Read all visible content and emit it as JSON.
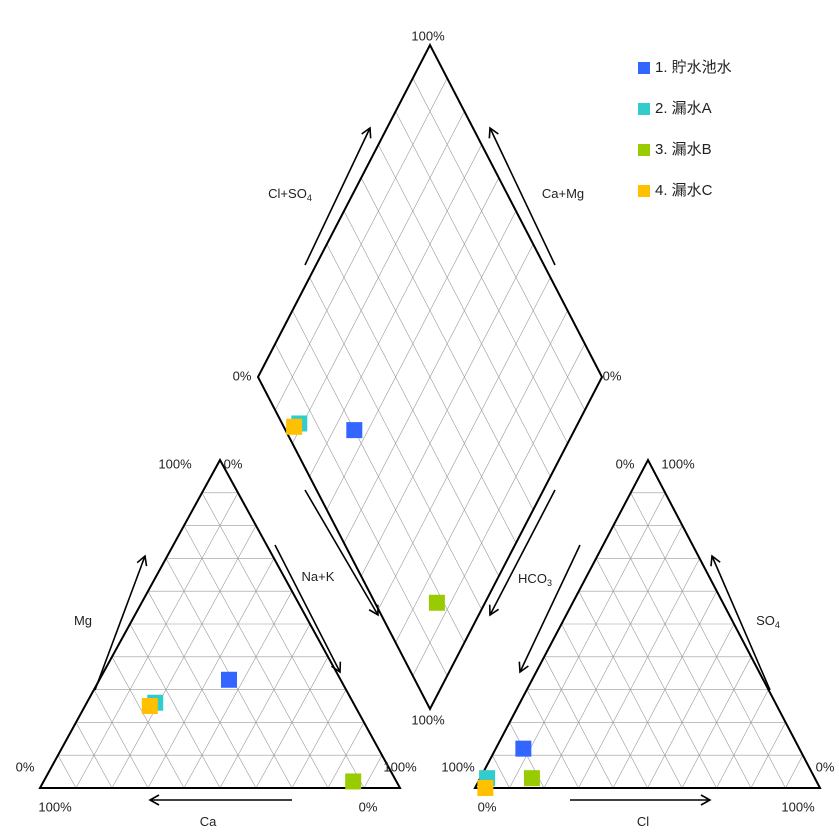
{
  "chart_data": {
    "type": "piper",
    "grid": true,
    "grid_step": 10,
    "cation_axes": [
      {
        "label": "Ca",
        "ticks": [
          {
            "value": 0,
            "label": "0%"
          },
          {
            "value": 100,
            "label": "100%"
          }
        ]
      },
      {
        "label": "Mg",
        "ticks": [
          {
            "value": 0,
            "label": "0%"
          },
          {
            "value": 100,
            "label": "100%"
          }
        ]
      },
      {
        "label": "Na+K",
        "ticks": [
          {
            "value": 0,
            "label": "0%"
          },
          {
            "value": 100,
            "label": "100%"
          }
        ]
      }
    ],
    "anion_axes": [
      {
        "label": "HCO3",
        "ticks": [
          {
            "value": 0,
            "label": "0%"
          },
          {
            "value": 100,
            "label": "100%"
          }
        ]
      },
      {
        "label": "Cl",
        "ticks": [
          {
            "value": 0,
            "label": "0%"
          },
          {
            "value": 100,
            "label": "100%"
          }
        ]
      },
      {
        "label": "SO4",
        "ticks": [
          {
            "value": 0,
            "label": "0%"
          },
          {
            "value": 100,
            "label": "100%"
          }
        ]
      }
    ],
    "diamond_axes": [
      {
        "label": "Cl+SO4",
        "ticks": [
          {
            "value": 0,
            "label": "0%"
          },
          {
            "value": 100,
            "label": "100%"
          }
        ]
      },
      {
        "label": "Ca+Mg",
        "ticks": [
          {
            "value": 0,
            "label": "0%"
          }
        ]
      },
      {
        "ticks": [
          {
            "value": 100,
            "label": "100%"
          }
        ]
      }
    ],
    "series": [
      {
        "name": "1. 貯水池水",
        "color": "#3366ff",
        "cations": [
          31,
          33,
          36
        ],
        "anions": [
          80,
          8,
          12
        ]
      },
      {
        "name": "2. 漏水A",
        "color": "#33cccc",
        "cations": [
          55,
          26,
          19
        ],
        "anions": [
          95,
          2,
          3
        ]
      },
      {
        "name": "3. 漏水B",
        "color": "#99cc00",
        "cations": [
          12,
          2,
          86
        ],
        "anions": [
          82,
          15,
          3
        ]
      },
      {
        "name": "4. 漏水C",
        "color": "#ffc000",
        "cations": [
          57,
          25,
          18
        ],
        "anions": [
          97,
          3,
          0
        ]
      }
    ]
  }
}
